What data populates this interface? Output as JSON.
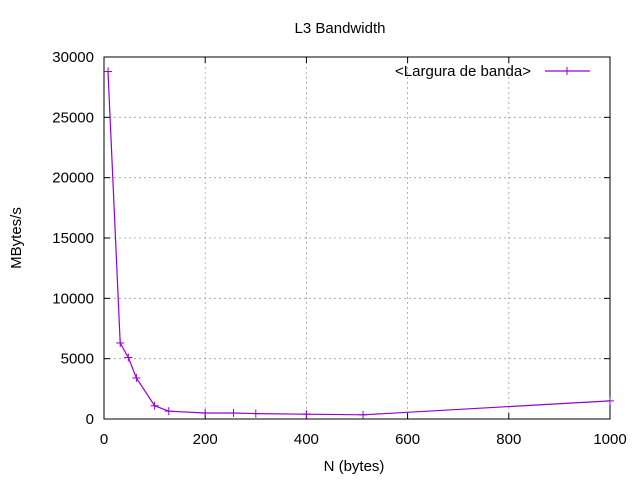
{
  "chart_data": {
    "type": "line",
    "title": "L3 Bandwidth",
    "xlabel": "N (bytes)",
    "ylabel": "MBytes/s",
    "xlim": [
      0,
      1000
    ],
    "ylim": [
      0,
      30000
    ],
    "x_ticks": [
      0,
      200,
      400,
      600,
      800,
      1000
    ],
    "y_ticks": [
      0,
      5000,
      10000,
      15000,
      20000,
      25000,
      30000
    ],
    "grid": true,
    "legend_position": "top-right",
    "series": [
      {
        "name": "<Largura de banda>",
        "color": "#9400d3",
        "marker": "plus",
        "x": [
          8,
          32,
          48,
          64,
          100,
          128,
          200,
          256,
          300,
          400,
          512,
          1000
        ],
        "y": [
          28800,
          6300,
          5100,
          3400,
          1100,
          650,
          500,
          500,
          450,
          400,
          350,
          1500
        ]
      }
    ]
  }
}
